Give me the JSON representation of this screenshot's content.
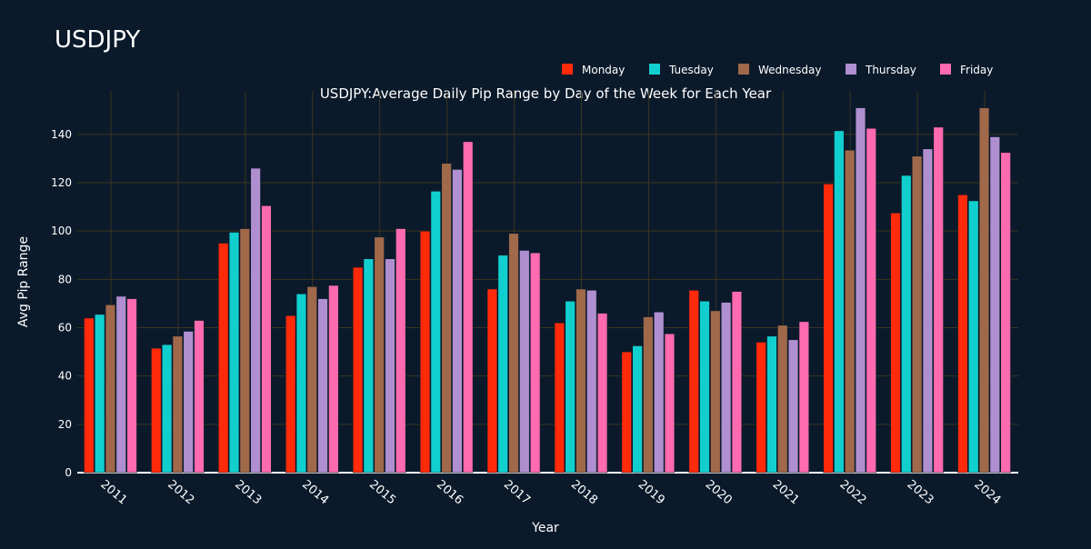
{
  "page_title": "USDJPY",
  "chart_data": {
    "type": "bar",
    "title": "USDJPY:Average Daily Pip Range by Day of the Week for Each Year",
    "xlabel": "Year",
    "ylabel": "Avg Pip Range",
    "ylim": [
      0,
      158
    ],
    "yticks": [
      0,
      20,
      40,
      60,
      80,
      100,
      120,
      140
    ],
    "grid": true,
    "legend_position": "top-right",
    "categories": [
      "2011",
      "2012",
      "2013",
      "2014",
      "2015",
      "2016",
      "2017",
      "2018",
      "2019",
      "2020",
      "2021",
      "2022",
      "2023",
      "2024"
    ],
    "series": [
      {
        "name": "Monday",
        "color": "#ff2a0a",
        "values": [
          64,
          51.5,
          95,
          65,
          85,
          100,
          76,
          62,
          50,
          75.5,
          54,
          119.5,
          107.5,
          115
        ]
      },
      {
        "name": "Tuesday",
        "color": "#12cfcf",
        "values": [
          65.5,
          53,
          99.5,
          74,
          88.5,
          116.5,
          90,
          71,
          52.5,
          71,
          56.5,
          141.5,
          123,
          112.5
        ]
      },
      {
        "name": "Wednesday",
        "color": "#a0694a",
        "values": [
          69.5,
          56.5,
          101,
          77,
          97.5,
          128,
          99,
          76,
          64.5,
          67,
          61,
          133.5,
          131,
          151
        ]
      },
      {
        "name": "Thursday",
        "color": "#b08fd0",
        "values": [
          73,
          58.5,
          126,
          72,
          88.5,
          125.5,
          92,
          75.5,
          66.5,
          70.5,
          55,
          151,
          134,
          139
        ]
      },
      {
        "name": "Friday",
        "color": "#ff6ab0",
        "values": [
          72,
          63,
          110.5,
          77.5,
          101,
          137,
          91,
          66,
          57.5,
          75,
          62.5,
          142.5,
          143,
          132.5
        ]
      }
    ]
  }
}
